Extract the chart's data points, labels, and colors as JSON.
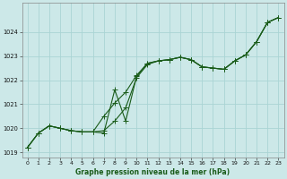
{
  "title": "Graphe pression niveau de la mer (hPa)",
  "bg_color": "#cce8e8",
  "grid_color": "#aad4d4",
  "line_color": "#1a5c1a",
  "xlim": [
    -0.5,
    23.5
  ],
  "ylim": [
    1018.8,
    1025.2
  ],
  "yticks": [
    1019,
    1020,
    1021,
    1022,
    1023,
    1024
  ],
  "xticks": [
    0,
    1,
    2,
    3,
    4,
    5,
    6,
    7,
    8,
    9,
    10,
    11,
    12,
    13,
    14,
    15,
    16,
    17,
    18,
    19,
    20,
    21,
    22,
    23
  ],
  "series1_x": [
    0,
    1,
    2,
    3,
    4,
    5,
    6,
    7,
    8,
    9,
    10,
    11,
    12,
    13,
    14,
    15,
    16,
    17,
    18,
    19,
    20,
    21,
    22,
    23
  ],
  "series1_y": [
    1019.2,
    1019.8,
    1020.1,
    1020.0,
    1019.9,
    1019.85,
    1019.85,
    1020.5,
    1021.05,
    1021.5,
    1022.2,
    1022.7,
    1022.8,
    1022.85,
    1022.95,
    1022.85,
    1022.55,
    1022.5,
    1022.45,
    1022.8,
    1023.05,
    1023.6,
    1024.4,
    1024.6
  ],
  "series2_x": [
    0,
    1,
    2,
    3,
    4,
    5,
    6,
    7,
    8,
    9,
    10,
    11,
    12,
    13,
    14,
    15,
    16,
    17,
    18,
    19,
    20,
    21,
    22,
    23
  ],
  "series2_y": [
    1019.2,
    1019.8,
    1020.1,
    1020.0,
    1019.9,
    1019.85,
    1019.85,
    1019.8,
    1021.6,
    1020.3,
    1022.15,
    1022.7,
    1022.8,
    1022.85,
    1022.95,
    1022.85,
    1022.55,
    1022.5,
    1022.45,
    1022.8,
    1023.05,
    1023.6,
    1024.4,
    1024.6
  ],
  "series3_x": [
    0,
    1,
    2,
    3,
    4,
    5,
    6,
    7,
    8,
    9,
    10,
    11,
    12,
    13,
    14,
    15,
    16,
    17,
    18,
    19,
    20,
    21,
    22,
    23
  ],
  "series3_y": [
    1019.2,
    1019.8,
    1020.1,
    1020.0,
    1019.9,
    1019.85,
    1019.85,
    1019.9,
    1020.3,
    1020.85,
    1022.1,
    1022.65,
    1022.8,
    1022.85,
    1022.95,
    1022.85,
    1022.55,
    1022.5,
    1022.45,
    1022.8,
    1023.05,
    1023.6,
    1024.4,
    1024.6
  ]
}
